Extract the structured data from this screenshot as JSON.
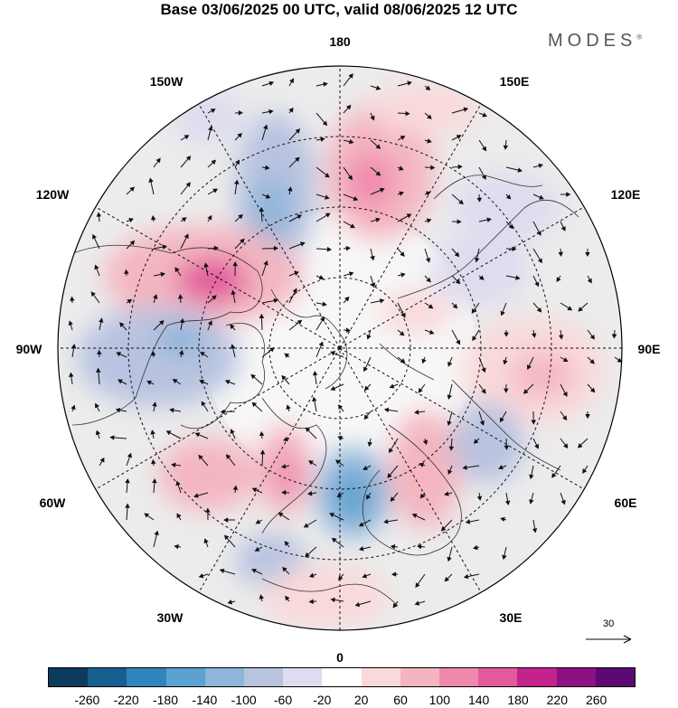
{
  "title": "Base 03/06/2025 00 UTC, valid 08/06/2025 12 UTC",
  "brand": "MODES",
  "brand_mark": "®",
  "longitude_labels": {
    "top": "180",
    "bottom": "0",
    "left": "90W",
    "right": "90E",
    "upper_left_1": "150W",
    "upper_left_2": "120W",
    "upper_right_1": "150E",
    "upper_right_2": "120E",
    "lower_left_1": "60W",
    "lower_left_2": "30W",
    "lower_right_1": "60E",
    "lower_right_2": "30E"
  },
  "reference_vector": {
    "label": "30"
  },
  "colorbar": {
    "ticks": [
      "-260",
      "-220",
      "-180",
      "-140",
      "-100",
      "-60",
      "-20",
      "20",
      "60",
      "100",
      "140",
      "180",
      "220",
      "260"
    ],
    "colors": [
      "#0c3b5e",
      "#15608f",
      "#2f86bd",
      "#5ba2d0",
      "#8eb5da",
      "#b8c3e0",
      "#dedcee",
      "#ffffff",
      "#f9d9da",
      "#f4b5c0",
      "#ef88ad",
      "#e25a9c",
      "#c4228c",
      "#8e1183",
      "#5c0a73"
    ]
  },
  "map_icons": [
    "north-pole-stereographic-map",
    "wind-vector-arrows",
    "coastline-outlines"
  ]
}
